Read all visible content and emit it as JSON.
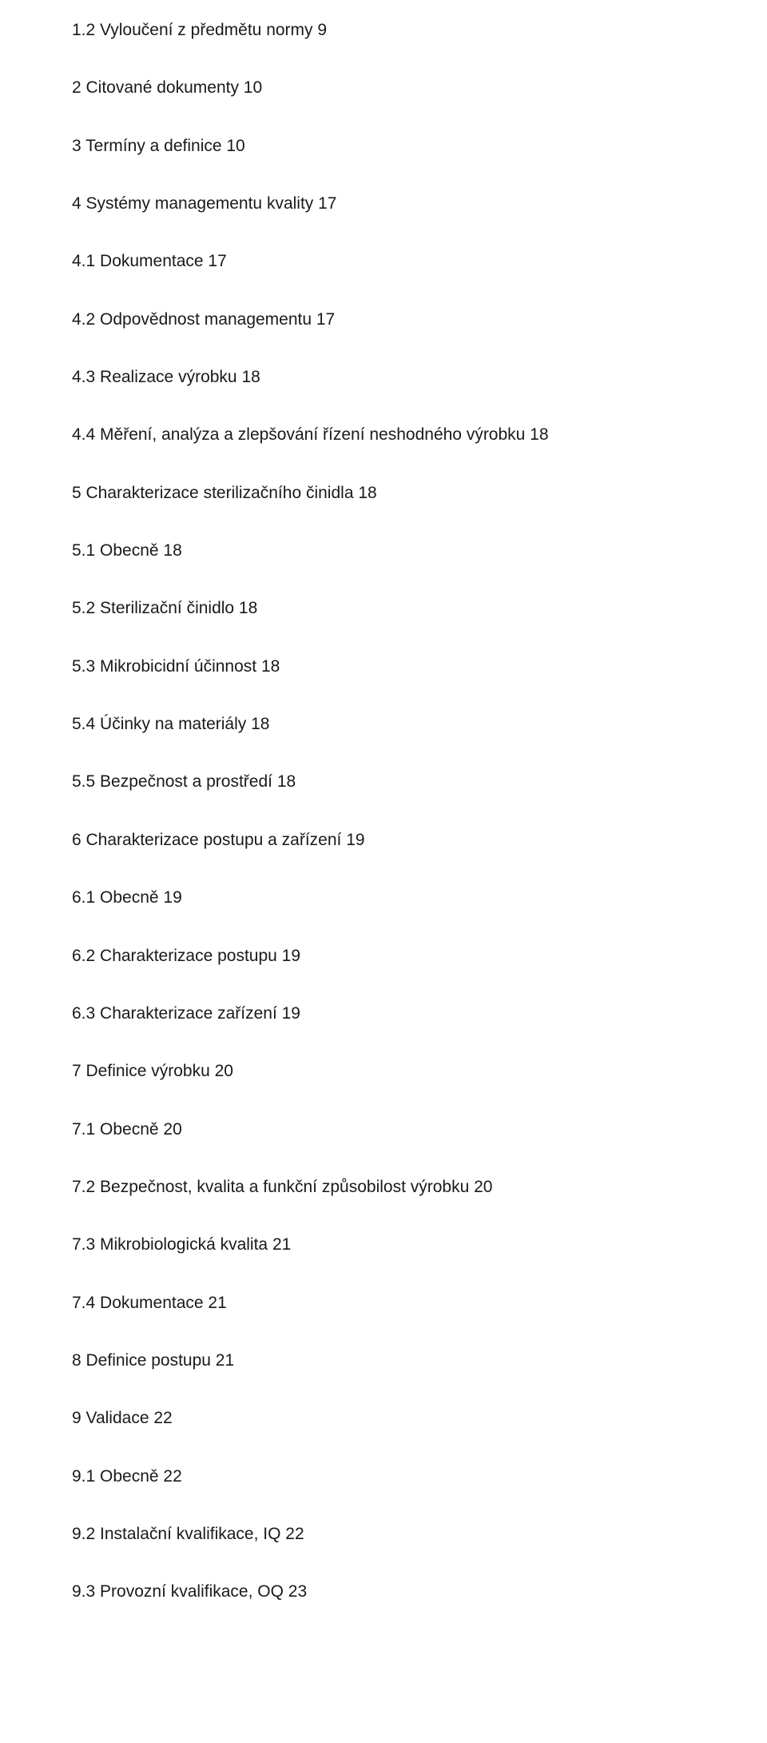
{
  "lines": [
    "1.2 Vyloučení z předmětu normy 9",
    "2 Citované dokumenty 10",
    "3 Termíny a definice 10",
    "4 Systémy managementu kvality 17",
    "4.1 Dokumentace 17",
    "4.2 Odpovědnost managementu 17",
    "4.3 Realizace výrobku 18",
    "4.4 Měření, analýza a zlepšování řízení neshodného výrobku 18",
    "5 Charakterizace sterilizačního činidla 18",
    "5.1 Obecně 18",
    "5.2 Sterilizační činidlo 18",
    "5.3 Mikrobicidní účinnost 18",
    "5.4 Účinky na materiály 18",
    "5.5 Bezpečnost a prostředí 18",
    "6 Charakterizace postupu a zařízení 19",
    "6.1 Obecně 19",
    "6.2 Charakterizace postupu 19",
    "6.3 Charakterizace zařízení 19",
    "7 Definice výrobku 20",
    "7.1 Obecně 20",
    "7.2 Bezpečnost, kvalita a funkční způsobilost výrobku 20",
    "7.3 Mikrobiologická kvalita 21",
    "7.4 Dokumentace 21",
    "8 Definice postupu 21",
    "9 Validace 22",
    "9.1 Obecně 22",
    "9.2 Instalační kvalifikace, IQ 22",
    "9.3 Provozní kvalifikace, OQ 23"
  ]
}
